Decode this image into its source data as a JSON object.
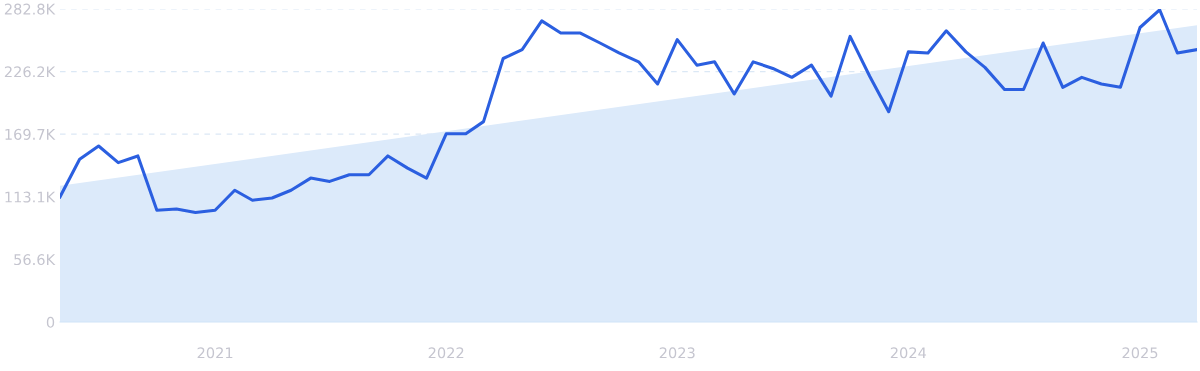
{
  "chart_data": {
    "type": "line",
    "x": [
      "2020-05",
      "2020-06",
      "2020-07",
      "2020-08",
      "2020-09",
      "2020-10",
      "2020-11",
      "2020-12",
      "2021-01",
      "2021-02",
      "2021-03",
      "2021-04",
      "2021-05",
      "2021-06",
      "2021-07",
      "2021-08",
      "2021-09",
      "2021-10",
      "2021-11",
      "2021-12",
      "2022-01",
      "2022-02",
      "2022-03",
      "2022-04",
      "2022-05",
      "2022-06",
      "2022-07",
      "2022-08",
      "2022-09",
      "2022-10",
      "2022-11",
      "2022-12",
      "2023-01",
      "2023-02",
      "2023-03",
      "2023-04",
      "2023-05",
      "2023-06",
      "2023-07",
      "2023-08",
      "2023-09",
      "2023-10",
      "2023-11",
      "2023-12",
      "2024-01",
      "2024-02",
      "2024-03",
      "2024-04",
      "2024-05",
      "2024-06",
      "2024-07",
      "2024-08",
      "2024-09",
      "2024-10",
      "2024-11",
      "2024-12",
      "2025-01",
      "2025-02",
      "2025-03",
      "2025-04"
    ],
    "series": [
      {
        "type": "area",
        "color": "#dceafa",
        "x": [
          "2020-05",
          "2025-04"
        ],
        "values": [
          123,
          268
        ]
      },
      {
        "color": "#2b5fe0",
        "values": [
          113,
          147,
          159,
          144,
          150,
          101,
          102,
          99,
          101,
          119,
          110,
          112,
          119,
          130,
          127,
          133,
          133,
          150,
          139,
          130,
          170,
          170,
          181,
          238,
          246,
          272,
          261,
          261,
          252,
          243,
          235,
          215,
          255,
          232,
          235,
          206,
          235,
          229,
          221,
          232,
          204,
          258,
          222,
          190,
          244,
          243,
          263,
          244,
          230,
          210,
          210,
          252,
          212,
          221,
          215,
          212,
          266,
          282,
          243,
          246
        ]
      }
    ],
    "xlim": [
      "2020-05",
      "2025-04"
    ],
    "xticks": [
      "2021",
      "2022",
      "2023",
      "2024",
      "2025"
    ],
    "ylim": [
      0,
      282.8
    ],
    "yticks": [
      {
        "value": 0,
        "label": "0"
      },
      {
        "value": 56.6,
        "label": "56.6K"
      },
      {
        "value": 113.1,
        "label": "113.1K"
      },
      {
        "value": 169.7,
        "label": "169.7K"
      },
      {
        "value": 226.2,
        "label": "226.2K"
      },
      {
        "value": 282.8,
        "label": "282.8K"
      }
    ],
    "grid": "y",
    "legend": false,
    "marker": "none",
    "line_style": "solid"
  }
}
